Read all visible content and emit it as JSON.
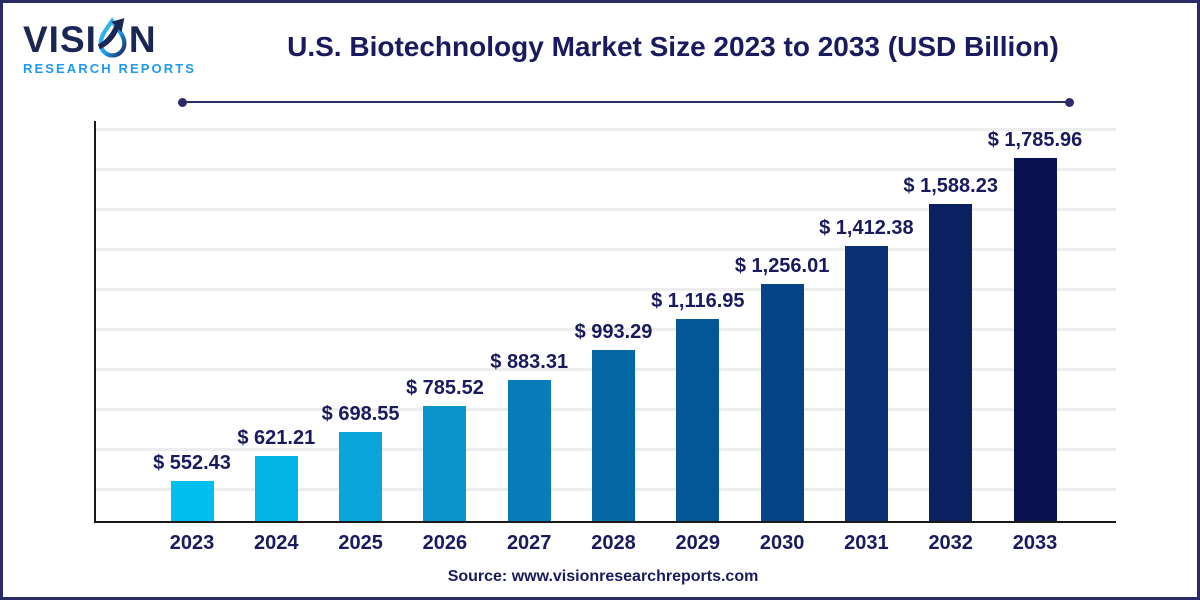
{
  "brand": {
    "name": "VISION",
    "name_prefix": "VISI",
    "name_suffix": "N",
    "subtitle": "RESEARCH REPORTS",
    "wordmark_color": "#1B2653",
    "subtitle_color": "#1E9BF0"
  },
  "header": {
    "title": "U.S. Biotechnology Market Size 2023 to 2033 (USD Billion)"
  },
  "footer": {
    "source": "Source: www.visionresearchreports.com"
  },
  "chart_data": {
    "type": "bar",
    "title": "U.S. Biotechnology Market Size 2023 to 2033 (USD Billion)",
    "unit": "USD Billion",
    "value_prefix": "$ ",
    "categories": [
      "2023",
      "2024",
      "2025",
      "2026",
      "2027",
      "2028",
      "2029",
      "2030",
      "2031",
      "2032",
      "2033"
    ],
    "values": [
      552.43,
      621.21,
      698.55,
      785.52,
      883.31,
      993.29,
      1116.95,
      1256.01,
      1412.38,
      1588.23,
      1785.96
    ],
    "labels": [
      "$ 552.43",
      "$ 621.21",
      "$ 698.55",
      "$ 785.52",
      "$ 883.31",
      "$ 993.29",
      "$ 1,116.95",
      "$ 1,256.01",
      "$ 1,412.38",
      "$ 1,588.23",
      "$ 1,785.96"
    ],
    "bar_colors": [
      "#00C0F0",
      "#04B4E6",
      "#0AA6DA",
      "#0994CB",
      "#077CB8",
      "#0568A6",
      "#035797",
      "#054587",
      "#093174",
      "#0A2061",
      "#0A1150"
    ],
    "xlabel": "",
    "ylabel": "",
    "grid": true,
    "legend": false,
    "axis_color": "#1A1A1A",
    "gridline_color": "#EDEDED",
    "label_color": "#1A1A5E"
  }
}
